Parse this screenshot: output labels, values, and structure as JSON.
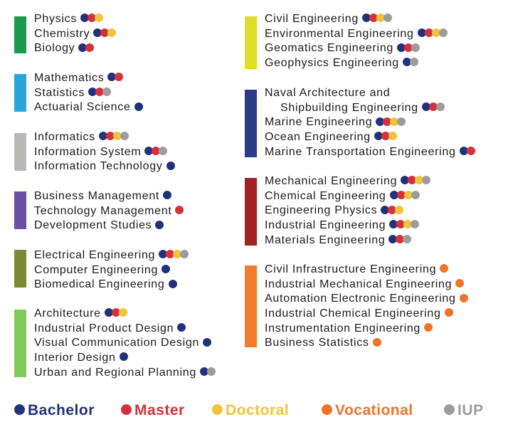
{
  "colors": {
    "bachelor": "#23317a",
    "master": "#d6313a",
    "doctoral": "#f2c43a",
    "vocational": "#f0732a",
    "iup": "#9c9c9c"
  },
  "legend": [
    {
      "key": "bachelor",
      "label": "Bachelor"
    },
    {
      "key": "master",
      "label": "Master"
    },
    {
      "key": "doctoral",
      "label": "Doctoral"
    },
    {
      "key": "vocational",
      "label": "Vocational"
    },
    {
      "key": "iup",
      "label": "IUP"
    }
  ],
  "groups": [
    {
      "color": "#1a9a4a",
      "items": [
        {
          "name": "Physics",
          "levels": [
            "bachelor",
            "master",
            "doctoral"
          ]
        },
        {
          "name": "Chemistry",
          "levels": [
            "bachelor",
            "master",
            "doctoral"
          ]
        },
        {
          "name": "Biology",
          "levels": [
            "bachelor",
            "master"
          ]
        }
      ]
    },
    {
      "color": "#2aa5dc",
      "items": [
        {
          "name": "Mathematics",
          "levels": [
            "bachelor",
            "master"
          ]
        },
        {
          "name": "Statistics",
          "levels": [
            "bachelor",
            "master",
            "iup"
          ]
        },
        {
          "name": "Actuarial Science",
          "levels": [
            "bachelor"
          ]
        }
      ]
    },
    {
      "color": "#b8b8b4",
      "items": [
        {
          "name": "Informatics",
          "levels": [
            "bachelor",
            "master",
            "doctoral",
            "iup"
          ]
        },
        {
          "name": "Information System",
          "levels": [
            "bachelor",
            "master",
            "iup"
          ]
        },
        {
          "name": "Information Technology",
          "levels": [
            "bachelor"
          ]
        }
      ]
    },
    {
      "color": "#6a4ea3",
      "items": [
        {
          "name": "Business Management",
          "levels": [
            "bachelor"
          ]
        },
        {
          "name": "Technology Management",
          "levels": [
            "master"
          ]
        },
        {
          "name": "Development Studies",
          "levels": [
            "bachelor"
          ]
        }
      ]
    },
    {
      "color": "#7a8a32",
      "items": [
        {
          "name": "Electrical Engineering",
          "levels": [
            "bachelor",
            "master",
            "doctoral",
            "iup"
          ]
        },
        {
          "name": "Computer Engineering",
          "levels": [
            "bachelor"
          ]
        },
        {
          "name": "Biomedical Engineering",
          "levels": [
            "bachelor"
          ]
        }
      ]
    },
    {
      "color": "#7fcc5a",
      "items": [
        {
          "name": "Architecture",
          "levels": [
            "bachelor",
            "master",
            "doctoral"
          ]
        },
        {
          "name": "Industrial Product Design",
          "levels": [
            "bachelor"
          ]
        },
        {
          "name": "Visual Communication Design",
          "levels": [
            "bachelor"
          ]
        },
        {
          "name": "Interior Design",
          "levels": [
            "bachelor"
          ]
        },
        {
          "name": "Urban and Regional Planning",
          "levels": [
            "bachelor",
            "iup"
          ]
        }
      ]
    },
    {
      "color": "#dede2a",
      "items": [
        {
          "name": "Civil Engineering",
          "levels": [
            "bachelor",
            "master",
            "doctoral",
            "iup"
          ]
        },
        {
          "name": "Environmental Engineering",
          "levels": [
            "bachelor",
            "master",
            "doctoral",
            "iup"
          ]
        },
        {
          "name": "Geomatics Engineering",
          "levels": [
            "bachelor",
            "master",
            "iup"
          ]
        },
        {
          "name": "Geophysics Engineering",
          "levels": [
            "bachelor",
            "iup"
          ]
        }
      ]
    },
    {
      "color": "#2d3a86",
      "items": [
        {
          "name": "Naval Architecture and",
          "levels": []
        },
        {
          "name": "Shipbuilding Engineering",
          "indent": true,
          "levels": [
            "bachelor",
            "master",
            "iup"
          ]
        },
        {
          "name": "Marine Engineering",
          "levels": [
            "bachelor",
            "master",
            "doctoral",
            "iup"
          ]
        },
        {
          "name": "Ocean Engineering",
          "levels": [
            "bachelor",
            "master",
            "doctoral"
          ]
        },
        {
          "name": "Marine Transportation Engineering",
          "levels": [
            "bachelor",
            "master"
          ]
        }
      ]
    },
    {
      "color": "#a32024",
      "items": [
        {
          "name": "Mechanical Engineering",
          "levels": [
            "bachelor",
            "master",
            "doctoral",
            "iup"
          ]
        },
        {
          "name": "Chemical Engineering",
          "levels": [
            "bachelor",
            "master",
            "doctoral",
            "iup"
          ]
        },
        {
          "name": "Engineering Physics",
          "levels": [
            "bachelor",
            "master",
            "doctoral"
          ]
        },
        {
          "name": "Industrial Engineering",
          "levels": [
            "bachelor",
            "master",
            "doctoral",
            "iup"
          ]
        },
        {
          "name": "Materials Engineering",
          "levels": [
            "bachelor",
            "master",
            "iup"
          ]
        }
      ]
    },
    {
      "color": "#f47b2b",
      "items": [
        {
          "name": "Civil Infrastructure Engineering",
          "levels": [
            "vocational"
          ]
        },
        {
          "name": "Industrial Mechanical Engineering",
          "levels": [
            "vocational"
          ]
        },
        {
          "name": "Automation Electronic Engineering",
          "levels": [
            "vocational"
          ]
        },
        {
          "name": "Industrial Chemical Engineering",
          "levels": [
            "vocational"
          ]
        },
        {
          "name": "Instrumentation Engineering",
          "levels": [
            "vocational"
          ]
        },
        {
          "name": "Business Statistics",
          "levels": [
            "vocational"
          ]
        }
      ]
    }
  ]
}
